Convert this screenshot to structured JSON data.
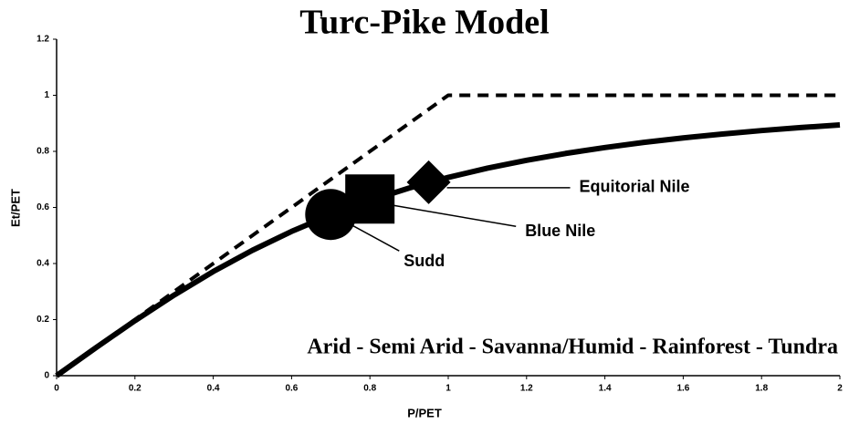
{
  "chart_data": {
    "type": "line",
    "title": "Turc-Pike Model",
    "x_label": "P/PET",
    "y_label": "Et/PET",
    "x": [
      0,
      0.1,
      0.2,
      0.3,
      0.4,
      0.5,
      0.6,
      0.7,
      0.8,
      0.9,
      1,
      1.1,
      1.2,
      1.3,
      1.4,
      1.5,
      1.6,
      1.7,
      1.8,
      1.9,
      2
    ],
    "series": [
      {
        "color": "#000000",
        "dashed": true,
        "values": [
          0,
          0.1,
          0.2,
          0.3,
          0.4,
          0.5,
          0.6,
          0.7,
          0.8,
          0.9,
          1,
          1,
          1,
          1,
          1,
          1,
          1,
          1,
          1,
          1,
          1
        ]
      },
      {
        "color": "#000000",
        "dashed": false,
        "values": [
          0,
          0.0995,
          0.1961,
          0.2873,
          0.3714,
          0.4472,
          0.5145,
          0.5735,
          0.6247,
          0.669,
          0.7071,
          0.7399,
          0.7682,
          0.7926,
          0.8137,
          0.8321,
          0.848,
          0.8619,
          0.8742,
          0.8849,
          0.8944
        ]
      }
    ],
    "points": [
      {
        "label": "Sudd",
        "marker": "circle",
        "x": 0.7,
        "y": 0.575
      },
      {
        "label": "Blue Nile",
        "marker": "square",
        "x": 0.8,
        "y": 0.63
      },
      {
        "label": "Equitorial Nile",
        "marker": "diamond",
        "x": 0.95,
        "y": 0.69
      }
    ],
    "band_note": "Arid - Semi Arid - Savanna/Humid - Rainforest - Tundra",
    "xlim": [
      0,
      2
    ],
    "xticks": [
      0,
      0.2,
      0.4,
      0.6,
      0.8,
      1,
      1.2,
      1.4,
      1.6,
      1.8,
      2
    ],
    "ylim": [
      0,
      1.2
    ],
    "yticks": [
      0,
      0.2,
      0.4,
      0.6,
      0.8,
      1,
      1.2
    ],
    "grid": false
  }
}
